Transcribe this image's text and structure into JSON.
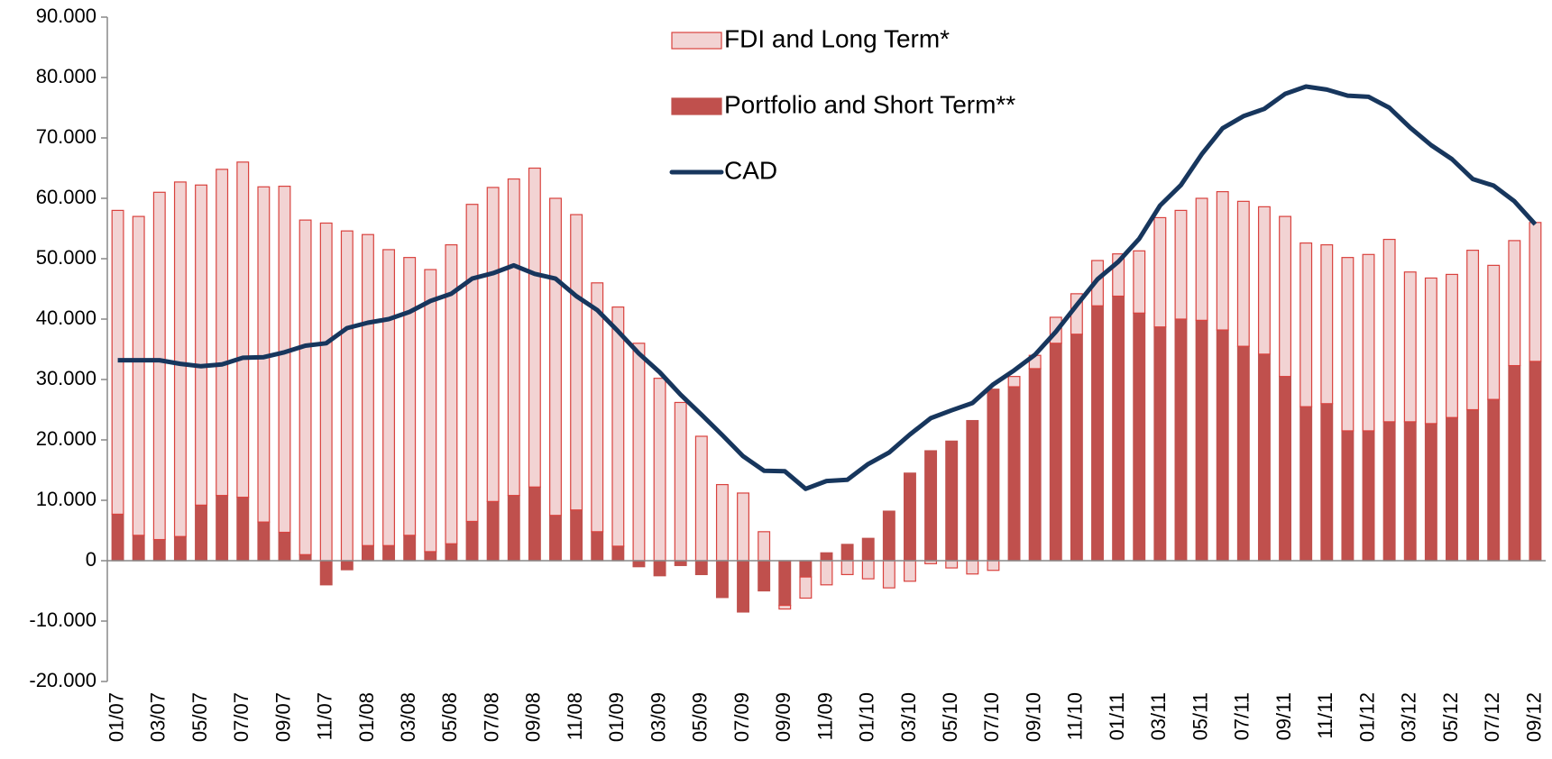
{
  "chart_data": {
    "type": "bar",
    "categories": [
      "01/07",
      null,
      "03/07",
      null,
      "05/07",
      null,
      "07/07",
      null,
      "09/07",
      null,
      "11/07",
      null,
      "01/08",
      null,
      "03/08",
      null,
      "05/08",
      null,
      "07/08",
      null,
      "09/08",
      null,
      "11/08",
      null,
      "01/09",
      null,
      "03/09",
      null,
      "05/09",
      null,
      "07/09",
      null,
      "09/09",
      null,
      "11/09",
      null,
      "01/10",
      null,
      "03/10",
      null,
      "05/10",
      null,
      "07/10",
      null,
      "09/10",
      null,
      "11/10",
      null,
      "01/11",
      null,
      "03/11",
      null,
      "05/11",
      null,
      "07/11",
      null,
      "09/11",
      null,
      "11/11",
      null,
      "01/12",
      null,
      "03/12",
      null,
      "05/12",
      null,
      "07/12",
      null,
      "09/12"
    ],
    "series": [
      {
        "name": "FDI and Long Term*",
        "type": "bar",
        "color": "#f2d3d3",
        "stroke": "#d9423e",
        "values": [
          50.3,
          52.8,
          57.5,
          58.7,
          53,
          54,
          55.5,
          55.5,
          57.3,
          55.4,
          55.9,
          54.6,
          51.5,
          49,
          46,
          46.7,
          49.5,
          52.5,
          52,
          52.4,
          52.8,
          52.5,
          48.9,
          41.2,
          39.6,
          36,
          30.2,
          26.2,
          20.6,
          12.6,
          11.2,
          4.8,
          -0.6,
          -3.5,
          -4,
          -2.3,
          -3,
          -4.5,
          -3.4,
          -0.5,
          -1.2,
          -2.2,
          -1.6,
          1.7,
          2.2,
          4.3,
          6.7,
          7.5,
          7,
          10.3,
          18.1,
          18,
          20.2,
          22.9,
          24,
          24.4,
          26.5,
          27.1,
          26.3,
          28.7,
          29.2,
          30.2,
          24.8,
          24.1,
          23.7,
          26.4,
          22.2,
          20.7,
          23
        ]
      },
      {
        "name": "Portfolio and Short Term**",
        "type": "bar",
        "color": "#c0504d",
        "stroke": "#c0504d",
        "values": [
          7.7,
          4.2,
          3.5,
          4,
          9.2,
          10.8,
          10.5,
          6.4,
          4.7,
          1,
          -4,
          -1.5,
          2.5,
          2.5,
          4.2,
          1.5,
          2.8,
          6.5,
          9.8,
          10.8,
          12.2,
          7.5,
          8.4,
          4.8,
          2.4,
          -1,
          -2.5,
          -0.8,
          -2.3,
          -6.1,
          -8.5,
          -5,
          -7.4,
          -2.7,
          1.3,
          2.7,
          3.7,
          8.2,
          14.5,
          18.2,
          19.8,
          23.2,
          28.4,
          28.8,
          31.8,
          36,
          37.5,
          42.2,
          43.8,
          41,
          38.7,
          40,
          39.8,
          38.2,
          35.5,
          34.2,
          30.5,
          25.5,
          26,
          21.5,
          21.5,
          23,
          23,
          22.7,
          23.7,
          25,
          26.7,
          32.3,
          33
        ]
      },
      {
        "name": "CAD",
        "type": "line",
        "color": "#17365d",
        "values": [
          33.2,
          33.2,
          33.2,
          32.6,
          32.2,
          32.5,
          33.6,
          33.7,
          34.5,
          35.6,
          36,
          38.5,
          39.4,
          40,
          41.2,
          43,
          44.2,
          46.7,
          47.6,
          48.9,
          47.5,
          46.7,
          43.8,
          41.5,
          38,
          34.3,
          31.2,
          27.5,
          24.2,
          20.8,
          17.3,
          14.9,
          14.8,
          11.9,
          13.2,
          13.4,
          16,
          17.9,
          20.9,
          23.6,
          24.9,
          26.1,
          29.2,
          31.5,
          34.1,
          37.9,
          42.3,
          46.6,
          49.5,
          53.3,
          58.8,
          62.2,
          67.3,
          71.6,
          73.6,
          74.8,
          77.3,
          78.5,
          78,
          77,
          76.8,
          75,
          71.7,
          68.8,
          66.5,
          63.2,
          62.1,
          59.5,
          55.7
        ]
      }
    ],
    "ylim": [
      -20,
      90
    ],
    "yticks": [
      {
        "value": -20,
        "label": "-20.000"
      },
      {
        "value": -10,
        "label": "-10.000"
      },
      0,
      {
        "value": 10,
        "label": "10.000"
      },
      {
        "value": 20,
        "label": "20.000"
      },
      {
        "value": 30,
        "label": "30.000"
      },
      {
        "value": 40,
        "label": "40.000"
      },
      {
        "value": 50,
        "label": "50.000"
      },
      {
        "value": 60,
        "label": "60.000"
      },
      {
        "value": 70,
        "label": "70.000"
      },
      {
        "value": 80,
        "label": "80.000"
      },
      {
        "value": 90,
        "label": "90.000"
      }
    ],
    "grid": false,
    "stacked": true,
    "legend": "top"
  }
}
